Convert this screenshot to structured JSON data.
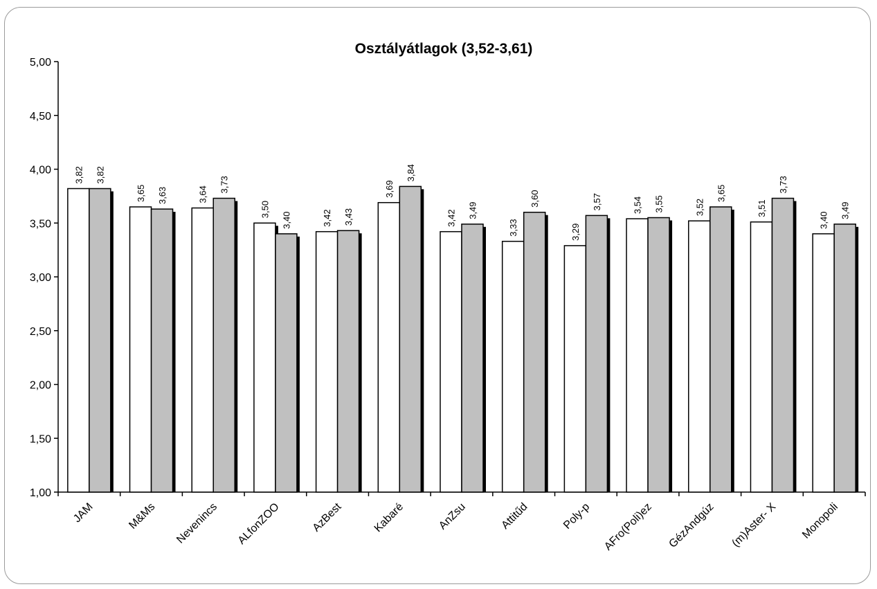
{
  "chart_data": {
    "type": "bar",
    "title": "Osztályátlagok (3,52-3,61)",
    "xlabel": "",
    "ylabel": "",
    "ylim": [
      1.0,
      5.0
    ],
    "yticks": [
      "1,00",
      "1,50",
      "2,00",
      "2,50",
      "3,00",
      "3,50",
      "4,00",
      "4,50",
      "5,00"
    ],
    "ytick_values": [
      1.0,
      1.5,
      2.0,
      2.5,
      3.0,
      3.5,
      4.0,
      4.5,
      5.0
    ],
    "categories": [
      "JAM",
      "M&Ms",
      "Nevenincs",
      "ALfonZOO",
      "AzBest",
      "Kabaré",
      "AnZsu",
      "Attitűd",
      "Poly-p",
      "AFro(Poli)ez",
      "GézAndgúz",
      "(m)Aster- X",
      "Monopoli"
    ],
    "series": [
      {
        "values": [
          3.82,
          3.65,
          3.64,
          3.5,
          3.42,
          3.69,
          3.42,
          3.33,
          3.29,
          3.54,
          3.52,
          3.51,
          3.4
        ],
        "labels": [
          "3,82",
          "3,65",
          "3,64",
          "3,50",
          "3,42",
          "3,69",
          "3,42",
          "3,33",
          "3,29",
          "3,54",
          "3,52",
          "3,51",
          "3,40"
        ],
        "color": "#ffffff"
      },
      {
        "values": [
          3.82,
          3.63,
          3.73,
          3.4,
          3.43,
          3.84,
          3.49,
          3.6,
          3.57,
          3.55,
          3.65,
          3.73,
          3.49
        ],
        "labels": [
          "3,82",
          "3,63",
          "3,73",
          "3,40",
          "3,43",
          "3,84",
          "3,49",
          "3,60",
          "3,57",
          "3,55",
          "3,65",
          "3,73",
          "3,49"
        ],
        "color": "#c0c0c0"
      }
    ],
    "grid": false,
    "legend": "none"
  }
}
